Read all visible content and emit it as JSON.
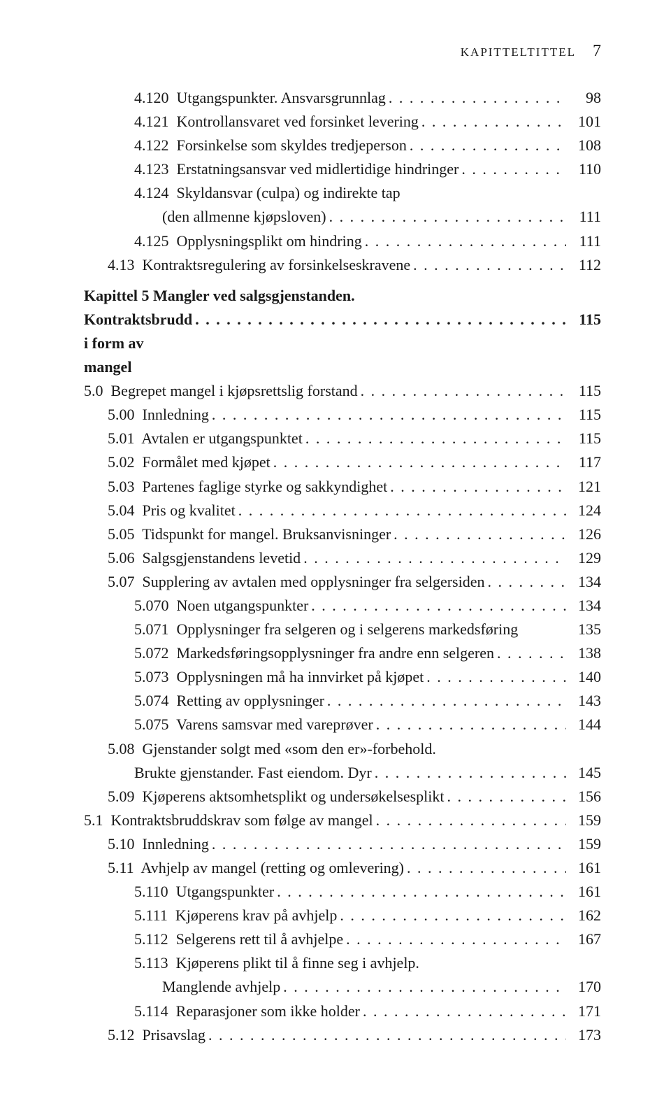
{
  "header": {
    "label": "KAPITTELTITTEL",
    "page_number": "7"
  },
  "entries": [
    {
      "indent": 2,
      "label": "4.120  Utgangspunkter. Ansvarsgrunnlag",
      "page": "98"
    },
    {
      "indent": 2,
      "label": "4.121  Kontrollansvaret ved forsinket levering",
      "page": "101"
    },
    {
      "indent": 2,
      "label": "4.122  Forsinkelse som skyldes tredjeperson",
      "page": "108"
    },
    {
      "indent": 2,
      "label": "4.123  Erstatningsansvar ved midlertidige hindringer",
      "page": "110"
    },
    {
      "indent": 2,
      "label": "4.124  Skyldansvar (culpa) og indirekte tap",
      "continuation": "(den allmenne kjøpsloven)",
      "cont_indent": 3,
      "page": "111"
    },
    {
      "indent": 2,
      "label": "4.125  Opplysningsplikt om hindring",
      "page": "111"
    },
    {
      "indent": 1,
      "label": "4.13  Kontraktsregulering av forsinkelseskravene",
      "page": "112"
    },
    {
      "type": "chapter",
      "label": "Kapittel 5 Mangler ved salgsgjenstanden.",
      "label2": "Kontraktsbrudd i form av mangel",
      "page": "115"
    },
    {
      "indent": 0,
      "label": "5.0  Begrepet mangel i kjøpsrettslig forstand",
      "page": "115"
    },
    {
      "indent": 1,
      "label": "5.00  Innledning",
      "page": "115"
    },
    {
      "indent": 1,
      "label": "5.01  Avtalen er utgangspunktet",
      "page": "115"
    },
    {
      "indent": 1,
      "label": "5.02  Formålet med kjøpet",
      "page": "117"
    },
    {
      "indent": 1,
      "label": "5.03  Partenes faglige styrke og sakkyndighet",
      "page": "121"
    },
    {
      "indent": 1,
      "label": "5.04  Pris og kvalitet",
      "page": "124"
    },
    {
      "indent": 1,
      "label": "5.05  Tidspunkt for mangel. Bruksanvisninger",
      "page": "126"
    },
    {
      "indent": 1,
      "label": "5.06  Salgsgjenstandens levetid",
      "page": "129"
    },
    {
      "indent": 1,
      "label": "5.07  Supplering av avtalen med opplysninger fra selgersiden",
      "page": "134"
    },
    {
      "indent": 2,
      "label": "5.070  Noen utgangspunkter",
      "page": "134"
    },
    {
      "indent": 2,
      "label": "5.071  Opplysninger fra selgeren og i selgerens markedsføring",
      "page": "135",
      "nodots": true
    },
    {
      "indent": 2,
      "label": "5.072  Markedsføringsopplysninger fra andre enn selgeren",
      "page": "138"
    },
    {
      "indent": 2,
      "label": "5.073  Opplysningen må ha innvirket på kjøpet",
      "page": "140"
    },
    {
      "indent": 2,
      "label": "5.074  Retting av opplysninger",
      "page": "143"
    },
    {
      "indent": 2,
      "label": "5.075  Varens samsvar med vareprøver",
      "page": "144"
    },
    {
      "indent": 1,
      "label": "5.08  Gjenstander solgt med «som den er»-forbehold.",
      "continuation": "Brukte gjenstander. Fast eiendom. Dyr",
      "cont_indent": 2,
      "page": "145"
    },
    {
      "indent": 1,
      "label": "5.09  Kjøperens aktsomhetsplikt og undersøkelsesplikt",
      "page": "156"
    },
    {
      "indent": 0,
      "label": "5.1  Kontraktsbruddskrav som følge av mangel",
      "page": "159"
    },
    {
      "indent": 1,
      "label": "5.10  Innledning",
      "page": "159"
    },
    {
      "indent": 1,
      "label": "5.11  Avhjelp av mangel (retting og omlevering)",
      "page": "161"
    },
    {
      "indent": 2,
      "label": "5.110  Utgangspunkter",
      "page": "161"
    },
    {
      "indent": 2,
      "label": "5.111  Kjøperens krav på avhjelp",
      "page": "162"
    },
    {
      "indent": 2,
      "label": "5.112  Selgerens rett til å avhjelpe",
      "page": "167"
    },
    {
      "indent": 2,
      "label": "5.113  Kjøperens plikt til å finne seg i avhjelp.",
      "continuation": "Manglende avhjelp",
      "cont_indent": 3,
      "page": "170"
    },
    {
      "indent": 2,
      "label": "5.114  Reparasjoner som ikke holder",
      "page": "171"
    },
    {
      "indent": 1,
      "label": "5.12  Prisavslag",
      "page": "173"
    }
  ]
}
